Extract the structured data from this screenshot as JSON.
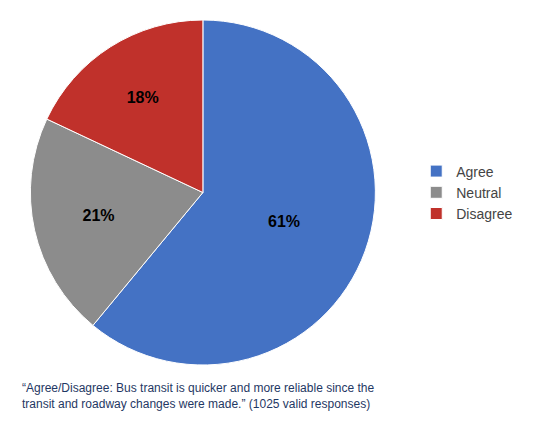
{
  "chart_data": {
    "type": "pie",
    "categories": [
      "Agree",
      "Neutral",
      "Disagree"
    ],
    "values": [
      61,
      21,
      18
    ],
    "value_labels": [
      "61%",
      "21%",
      "18%"
    ],
    "colors": [
      "#4472C4",
      "#8C8C8C",
      "#C0312B"
    ],
    "data_labels": true,
    "legend": "right",
    "annotations": [
      "“Agree/Disagree: Bus transit is quicker and more reliable since the\ntransit and roadway changes were made.” (1025 valid responses)"
    ]
  }
}
